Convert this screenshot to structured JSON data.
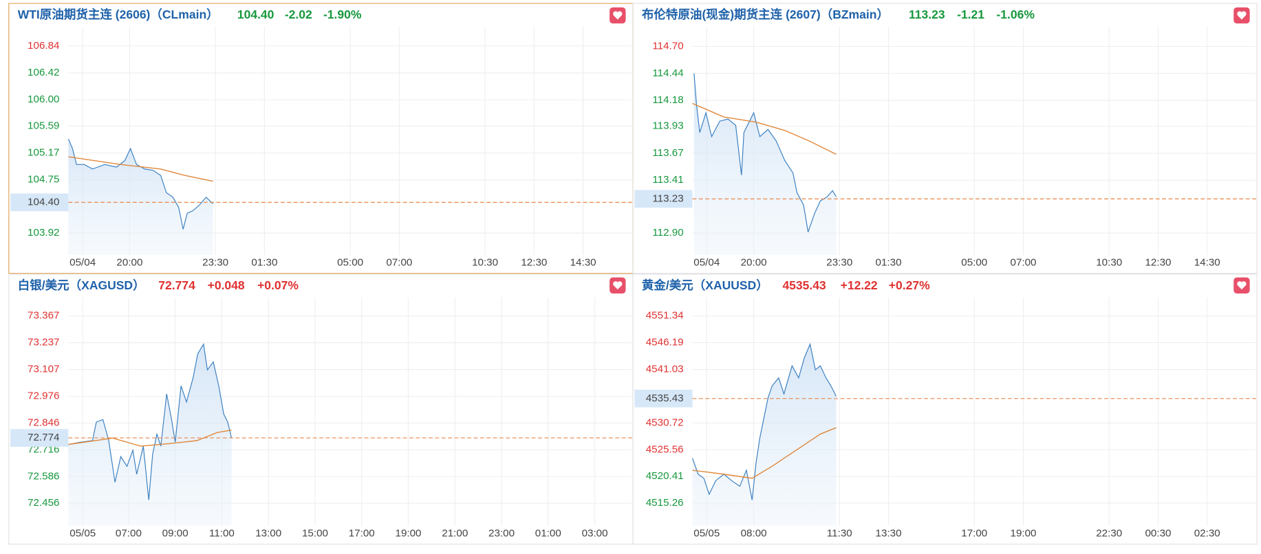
{
  "chart_data": [
    {
      "type": "line",
      "title": "WTI原油期货主连 (2606)（CLmain）",
      "price": {
        "value": 104.4,
        "label": "104.40"
      },
      "change": -2.02,
      "change_pct": {
        "value": -1.9,
        "label": "-1.90%"
      },
      "quote_color": "#17983d",
      "xlim": [
        0,
        1378
      ],
      "xticks": [
        {
          "value": 35,
          "label": "05/04"
        },
        {
          "value": 150,
          "label": "20:00"
        },
        {
          "value": 360,
          "label": "23:30"
        },
        {
          "value": 480,
          "label": "01:30"
        },
        {
          "value": 690,
          "label": "05:00"
        },
        {
          "value": 810,
          "label": "07:00"
        },
        {
          "value": 1020,
          "label": "10:30"
        },
        {
          "value": 1140,
          "label": "12:30"
        },
        {
          "value": 1260,
          "label": "14:30"
        }
      ],
      "ylim": [
        103.58,
        107.14
      ],
      "yticks": [
        106.84,
        106.42,
        {
          "value": 106,
          "label": "106.00"
        },
        105.59,
        105.17,
        104.75,
        103.92
      ],
      "ytick_colors": [
        "#e03131",
        "#17983d",
        "#17983d",
        "#17983d",
        "#17983d",
        "#17983d",
        "#17983d"
      ],
      "grid": true,
      "series": [
        {
          "color": "#3a7fc1",
          "area": true,
          "x": [
            0,
            10,
            20,
            39,
            59,
            89,
            118,
            138,
            152,
            167,
            187,
            207,
            226,
            240,
            256,
            270,
            281,
            291,
            305,
            321,
            337,
            354
          ],
          "values": [
            105.39,
            105.24,
            104.99,
            104.99,
            104.92,
            104.99,
            104.95,
            105.05,
            105.24,
            104.99,
            104.92,
            104.9,
            104.82,
            104.55,
            104.48,
            104.32,
            103.98,
            104.23,
            104.27,
            104.36,
            104.48,
            104.38
          ]
        },
        {
          "color": "#e0883a",
          "area": false,
          "x": [
            0,
            128,
            226,
            285,
            354
          ],
          "values": [
            105.11,
            104.99,
            104.92,
            104.82,
            104.73
          ]
        }
      ]
    },
    {
      "type": "line",
      "title": "布伦特原油(现金)期货主连 (2607)（BZmain）",
      "price": {
        "value": 113.23,
        "label": "113.23"
      },
      "change": -1.21,
      "change_pct": {
        "value": -1.06,
        "label": "-1.06%"
      },
      "quote_color": "#17983d",
      "xlim": [
        0,
        1378
      ],
      "xticks": [
        {
          "value": 35,
          "label": "05/04"
        },
        {
          "value": 150,
          "label": "20:00"
        },
        {
          "value": 360,
          "label": "23:30"
        },
        {
          "value": 480,
          "label": "01:30"
        },
        {
          "value": 690,
          "label": "05:00"
        },
        {
          "value": 810,
          "label": "07:00"
        },
        {
          "value": 1020,
          "label": "10:30"
        },
        {
          "value": 1140,
          "label": "12:30"
        },
        {
          "value": 1260,
          "label": "14:30"
        }
      ],
      "ylim": [
        112.69,
        114.89
      ],
      "yticks": [
        {
          "value": 114.7,
          "label": "114.70"
        },
        114.44,
        114.18,
        113.93,
        113.67,
        113.41,
        {
          "value": 112.9,
          "label": "112.90"
        }
      ],
      "ytick_colors": [
        "#e03131",
        "#17983d",
        "#17983d",
        "#17983d",
        "#17983d",
        "#17983d",
        "#17983d"
      ],
      "grid": true,
      "series": [
        {
          "color": "#3a7fc1",
          "area": true,
          "x": [
            4,
            10,
            18,
            33,
            47,
            67,
            87,
            106,
            120,
            126,
            150,
            165,
            185,
            205,
            226,
            246,
            256,
            272,
            283,
            299,
            313,
            330,
            343,
            352
          ],
          "values": [
            114.44,
            114.14,
            113.87,
            114.06,
            113.83,
            113.98,
            114.0,
            113.94,
            113.46,
            113.87,
            114.06,
            113.83,
            113.9,
            113.79,
            113.6,
            113.48,
            113.29,
            113.17,
            112.91,
            113.09,
            113.21,
            113.25,
            113.31,
            113.25
          ]
        },
        {
          "color": "#e0883a",
          "area": false,
          "x": [
            0,
            77,
            156,
            226,
            285,
            352
          ],
          "values": [
            114.15,
            114.02,
            113.97,
            113.89,
            113.79,
            113.66
          ]
        }
      ]
    },
    {
      "type": "line",
      "title": "白银/美元（XAGUSD）",
      "price": {
        "value": 72.774,
        "label": "72.774"
      },
      "change": {
        "value": 0.048,
        "label": "+0.048"
      },
      "change_pct": {
        "value": 0.07,
        "label": "+0.07%"
      },
      "quote_color": "#e03131",
      "xlim": [
        0,
        1449
      ],
      "xticks": [
        {
          "value": 37,
          "label": "05/05"
        },
        {
          "value": 155,
          "label": "07:00"
        },
        {
          "value": 275,
          "label": "09:00"
        },
        {
          "value": 395,
          "label": "11:00"
        },
        {
          "value": 515,
          "label": "13:00"
        },
        {
          "value": 635,
          "label": "15:00"
        },
        {
          "value": 755,
          "label": "17:00"
        },
        {
          "value": 875,
          "label": "19:00"
        },
        {
          "value": 995,
          "label": "21:00"
        },
        {
          "value": 1115,
          "label": "23:00"
        },
        {
          "value": 1235,
          "label": "01:00"
        },
        {
          "value": 1355,
          "label": "03:00"
        }
      ],
      "ylim": [
        72.347,
        73.457
      ],
      "yticks": [
        73.367,
        73.237,
        73.107,
        72.976,
        72.846,
        72.716,
        72.586,
        72.456
      ],
      "ytick_colors": [
        "#e03131",
        "#e03131",
        "#e03131",
        "#e03131",
        "#e03131",
        "#17983d",
        "#17983d",
        "#17983d"
      ],
      "grid": true,
      "series": [
        {
          "color": "#3a7fc1",
          "area": true,
          "x": [
            0,
            31,
            62,
            72,
            89,
            104,
            120,
            135,
            151,
            166,
            176,
            193,
            207,
            217,
            228,
            238,
            253,
            265,
            275,
            290,
            304,
            321,
            333,
            348,
            358,
            373,
            387,
            400,
            410,
            420
          ],
          "values": [
            72.742,
            72.753,
            72.761,
            72.851,
            72.863,
            72.761,
            72.558,
            72.683,
            72.636,
            72.714,
            72.597,
            72.734,
            72.472,
            72.695,
            72.792,
            72.734,
            72.988,
            72.871,
            72.753,
            73.027,
            72.949,
            73.066,
            73.183,
            73.23,
            73.105,
            73.144,
            73.027,
            72.89,
            72.851,
            72.773
          ]
        },
        {
          "color": "#e0883a",
          "area": false,
          "x": [
            0,
            114,
            186,
            259,
            331,
            383,
            420
          ],
          "values": [
            72.742,
            72.773,
            72.734,
            72.746,
            72.761,
            72.8,
            72.812
          ]
        }
      ]
    },
    {
      "type": "line",
      "title": "黄金/美元（XAUUSD）",
      "price": {
        "value": 4535.43,
        "label": "4535.43"
      },
      "change": {
        "value": 12.22,
        "label": "+12.22"
      },
      "change_pct": {
        "value": 0.27,
        "label": "+0.27%"
      },
      "quote_color": "#e03131",
      "xlim": [
        0,
        1378
      ],
      "xticks": [
        {
          "value": 35,
          "label": "05/05"
        },
        {
          "value": 150,
          "label": "08:00"
        },
        {
          "value": 360,
          "label": "11:30"
        },
        {
          "value": 480,
          "label": "13:30"
        },
        {
          "value": 690,
          "label": "17:00"
        },
        {
          "value": 810,
          "label": "19:00"
        },
        {
          "value": 1020,
          "label": "22:30"
        },
        {
          "value": 1140,
          "label": "00:30"
        },
        {
          "value": 1260,
          "label": "02:30"
        }
      ],
      "ylim": [
        4510.92,
        4554.9
      ],
      "yticks": [
        4551.34,
        4546.19,
        4541.03,
        4530.72,
        4525.56,
        4520.41,
        4515.26
      ],
      "ytick_colors": [
        "#e03131",
        "#e03131",
        "#e03131",
        "#e03131",
        "#e03131",
        "#17983d",
        "#17983d"
      ],
      "grid": true,
      "series": [
        {
          "color": "#3a7fc1",
          "area": true,
          "x": [
            0,
            14,
            28,
            41,
            57,
            77,
            96,
            116,
            132,
            146,
            156,
            165,
            175,
            185,
            195,
            211,
            224,
            244,
            260,
            274,
            288,
            301,
            313,
            327,
            339,
            352
          ],
          "values": [
            4523.93,
            4520.84,
            4520.06,
            4516.96,
            4519.59,
            4520.84,
            4519.59,
            4518.51,
            4521.61,
            4515.88,
            4523.16,
            4527.8,
            4531.67,
            4535.55,
            4537.87,
            4539.42,
            4536.32,
            4541.74,
            4539.42,
            4543.29,
            4545.92,
            4540.97,
            4541.74,
            4539.42,
            4537.87,
            4535.86
          ]
        },
        {
          "color": "#e0883a",
          "area": false,
          "x": [
            0,
            77,
            146,
            195,
            254,
            313,
            352
          ],
          "values": [
            4521.61,
            4520.84,
            4520.06,
            4522.38,
            4525.48,
            4528.58,
            4529.82
          ]
        }
      ]
    }
  ]
}
